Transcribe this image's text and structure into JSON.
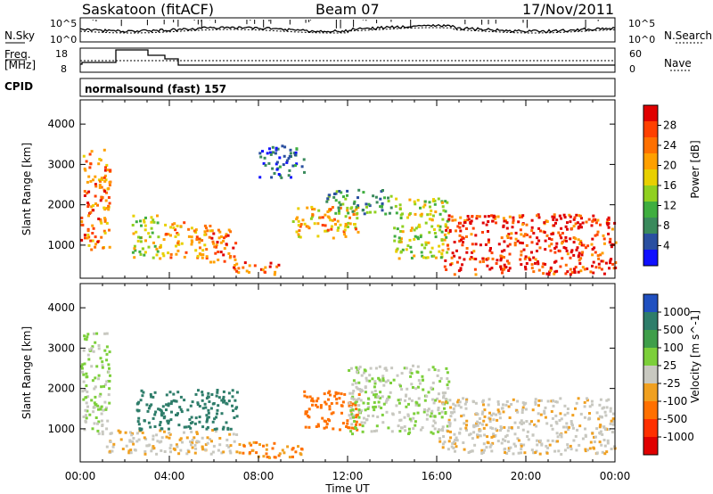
{
  "header": {
    "title": "Saskatoon (fitACF)",
    "beam": "Beam 07",
    "date": "17/Nov/2011"
  },
  "sky_panel": {
    "left_label": "N.Sky",
    "right_label": "N.Search",
    "left_ticks": [
      "10^5",
      "10^0"
    ],
    "right_ticks": [
      "10^5",
      "10^0"
    ]
  },
  "freq_panel": {
    "left_label_line1": "Freq.",
    "left_label_line2": "[MHz]",
    "right_label": "Nave",
    "left_ticks": [
      "18",
      "8"
    ],
    "right_ticks": [
      "60",
      "0"
    ]
  },
  "cpid": {
    "label": "CPID",
    "value": "normalsound (fast) 157"
  },
  "power_panel": {
    "ylabel": "Slant Range [km]",
    "colorbar_label": "Power [dB]",
    "colorbar_ticks": [
      "28",
      "24",
      "20",
      "16",
      "12",
      "8",
      "4"
    ],
    "colors": [
      "#e00000",
      "#ff4000",
      "#ff7000",
      "#ffa000",
      "#e8d000",
      "#90d020",
      "#3fae3f",
      "#3a8a5c",
      "#2a4fa0",
      "#1010ff"
    ]
  },
  "velocity_panel": {
    "ylabel": "Slant Range [km]",
    "colorbar_label": "Velocity [m s^-1]",
    "colorbar_ticks": [
      "1000",
      "500",
      "100",
      "25",
      "-25",
      "-100",
      "-500",
      "-1000"
    ],
    "colors": [
      "#2050c0",
      "#2e7d6a",
      "#3f9e4a",
      "#7ccf3a",
      "#c8c8c0",
      "#f0a020",
      "#ff7000",
      "#ff3000",
      "#e00000"
    ],
    "ground_scatter_color": "#c8c8c0"
  },
  "xaxis": {
    "label": "Time UT",
    "ticks": [
      "00:00",
      "04:00",
      "08:00",
      "12:00",
      "16:00",
      "20:00",
      "00:00"
    ]
  },
  "chart_data": {
    "type": "heatmap",
    "x_range_hours": [
      0,
      24
    ],
    "y_range_km": [
      180,
      4600
    ],
    "y_ticks_km": [
      1000,
      2000,
      3000,
      4000
    ],
    "grid": false,
    "power_regions": [
      {
        "t": [
          0.0,
          1.3
        ],
        "r": [
          900,
          3400
        ],
        "db": 24
      },
      {
        "t": [
          2.3,
          3.5
        ],
        "r": [
          700,
          1800
        ],
        "db": 18
      },
      {
        "t": [
          3.5,
          5.8
        ],
        "r": [
          700,
          1600
        ],
        "db": 22
      },
      {
        "t": [
          5.8,
          7.0
        ],
        "r": [
          600,
          1500
        ],
        "db": 26
      },
      {
        "t": [
          6.8,
          9.0
        ],
        "r": [
          300,
          600
        ],
        "db": 26
      },
      {
        "t": [
          9.5,
          12.5
        ],
        "r": [
          1200,
          2000
        ],
        "db": 22
      },
      {
        "t": [
          11.0,
          14.0
        ],
        "r": [
          1800,
          2400
        ],
        "db": 12
      },
      {
        "t": [
          8.0,
          10.0
        ],
        "r": [
          2700,
          3500
        ],
        "db": 8
      },
      {
        "t": [
          14.0,
          16.5
        ],
        "r": [
          700,
          2200
        ],
        "db": 18
      },
      {
        "t": [
          16.3,
          24.0
        ],
        "r": [
          300,
          1800
        ],
        "db": 28
      }
    ],
    "velocity_regions": [
      {
        "t": [
          0.0,
          1.3
        ],
        "r": [
          900,
          3400
        ],
        "v": 25
      },
      {
        "t": [
          1.0,
          7.0
        ],
        "r": [
          400,
          1000
        ],
        "v": -20
      },
      {
        "t": [
          2.5,
          7.0
        ],
        "r": [
          1000,
          2000
        ],
        "v": 300
      },
      {
        "t": [
          7.0,
          10.0
        ],
        "r": [
          300,
          700
        ],
        "v": -100
      },
      {
        "t": [
          10.0,
          12.5
        ],
        "r": [
          1000,
          2000
        ],
        "v": -400
      },
      {
        "t": [
          12.0,
          16.5
        ],
        "r": [
          900,
          2600
        ],
        "v": 20
      },
      {
        "t": [
          16.0,
          24.0
        ],
        "r": [
          400,
          1800
        ],
        "v": -10
      }
    ]
  }
}
